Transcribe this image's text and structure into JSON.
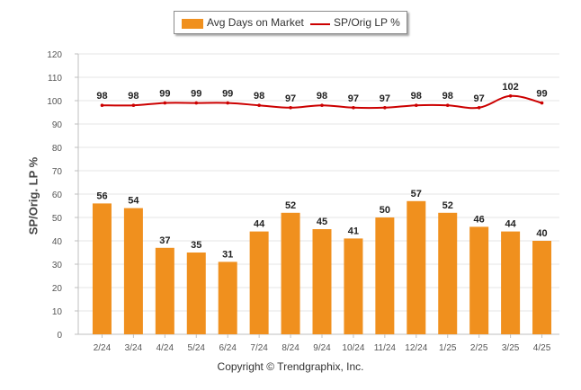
{
  "legend": {
    "bar_label": "Avg Days on Market",
    "line_label": "SP/Orig LP %"
  },
  "footer": "Copyright © Trendgraphix, Inc.",
  "chart_data": {
    "type": "bar",
    "categories": [
      "2/24",
      "3/24",
      "4/24",
      "5/24",
      "6/24",
      "7/24",
      "8/24",
      "9/24",
      "10/24",
      "11/24",
      "12/24",
      "1/25",
      "2/25",
      "3/25",
      "4/25"
    ],
    "series": [
      {
        "name": "Avg Days on Market",
        "type": "bar",
        "color": "#f0901e",
        "values": [
          56,
          54,
          37,
          35,
          31,
          44,
          52,
          45,
          41,
          50,
          57,
          52,
          46,
          44,
          40
        ]
      },
      {
        "name": "SP/Orig LP %",
        "type": "line",
        "color": "#cc0000",
        "values": [
          98,
          98,
          99,
          99,
          99,
          98,
          97,
          98,
          97,
          97,
          98,
          98,
          97,
          102,
          99
        ]
      }
    ],
    "ylabel": "SP/Orig. LP %",
    "ylim": [
      0,
      120
    ],
    "yticks": [
      0,
      10,
      20,
      30,
      40,
      50,
      60,
      70,
      80,
      90,
      100,
      110,
      120
    ],
    "grid": true,
    "legend_position": "top-center"
  }
}
